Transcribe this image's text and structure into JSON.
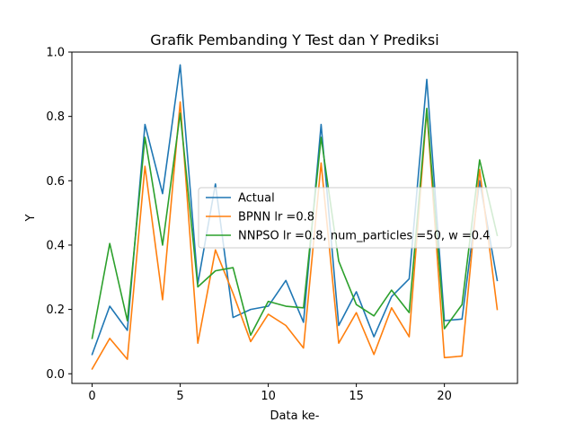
{
  "chart_data": {
    "type": "line",
    "title": "Grafik Pembanding Y Test dan Y Prediksi",
    "xlabel": "Data ke-",
    "ylabel": "Y",
    "xlim": [
      -1.15,
      24.15
    ],
    "ylim": [
      -0.03,
      1.0
    ],
    "x_ticks": [
      0,
      5,
      10,
      15,
      20
    ],
    "x_tick_labels": [
      "0",
      "5",
      "10",
      "15",
      "20"
    ],
    "y_ticks": [
      0.0,
      0.2,
      0.4,
      0.6,
      0.8,
      1.0
    ],
    "y_tick_labels": [
      "0.0",
      "0.2",
      "0.4",
      "0.6",
      "0.8",
      "1.0"
    ],
    "grid": false,
    "legend_position": "center-right",
    "x": [
      0,
      1,
      2,
      3,
      4,
      5,
      6,
      7,
      8,
      9,
      10,
      11,
      12,
      13,
      14,
      15,
      16,
      17,
      18,
      19,
      20,
      21,
      22,
      23
    ],
    "series": [
      {
        "name": "Actual",
        "color": "#1f77b4",
        "values": [
          0.06,
          0.21,
          0.135,
          0.775,
          0.56,
          0.96,
          0.28,
          0.59,
          0.175,
          0.2,
          0.21,
          0.29,
          0.16,
          0.775,
          0.15,
          0.255,
          0.115,
          0.24,
          0.295,
          0.915,
          0.165,
          0.17,
          0.6,
          0.29
        ]
      },
      {
        "name": "BPNN lr =0.8",
        "color": "#ff7f0e",
        "values": [
          0.015,
          0.11,
          0.045,
          0.645,
          0.23,
          0.845,
          0.095,
          0.385,
          0.25,
          0.1,
          0.185,
          0.15,
          0.08,
          0.655,
          0.095,
          0.19,
          0.06,
          0.205,
          0.115,
          0.82,
          0.05,
          0.055,
          0.635,
          0.2
        ]
      },
      {
        "name": "NNPSO lr =0.8, num_particles =50, w =0.4",
        "color": "#2ca02c",
        "values": [
          0.11,
          0.405,
          0.165,
          0.735,
          0.4,
          0.81,
          0.27,
          0.32,
          0.33,
          0.12,
          0.225,
          0.21,
          0.205,
          0.735,
          0.35,
          0.215,
          0.18,
          0.26,
          0.19,
          0.825,
          0.14,
          0.215,
          0.665,
          0.43
        ]
      }
    ]
  }
}
